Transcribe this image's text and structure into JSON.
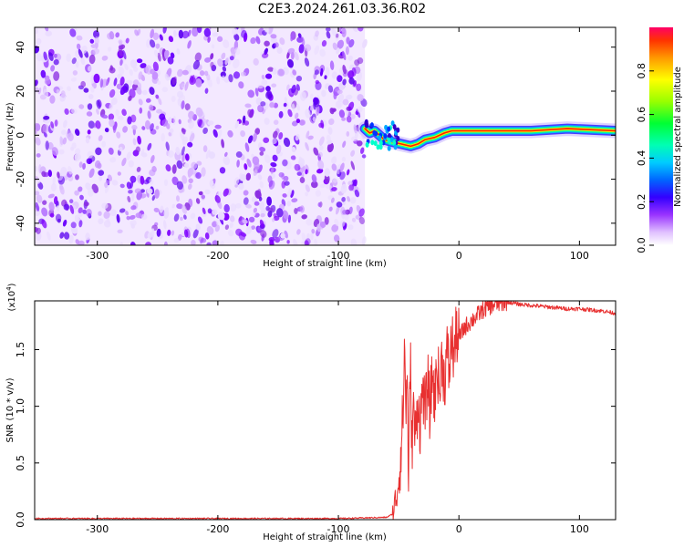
{
  "title": "C2E3.2024.261.03.36.R02",
  "chart_data": [
    {
      "type": "heatmap",
      "xlabel": "Height of straight line (km)",
      "ylabel": "Frequency (Hz)",
      "xlim": [
        -352,
        130
      ],
      "ylim": [
        -50,
        49
      ],
      "xticks": [
        -300,
        -200,
        -100,
        0,
        100
      ],
      "yticks": [
        -40,
        -20,
        0,
        20,
        40
      ],
      "colorbar": {
        "label": "Normalized spectral amplitude",
        "range": [
          0,
          1
        ],
        "ticks": [
          0.0,
          0.2,
          0.4,
          0.6,
          0.8
        ],
        "tick_labels": [
          "0.0",
          "0.2",
          "0.4",
          "0.6",
          "0.8"
        ],
        "colormap": [
          "#ffffff",
          "#cc66ff",
          "#7f00ff",
          "#0000ff",
          "#00c8ff",
          "#00ffb0",
          "#00ff00",
          "#ffff00",
          "#ff8000",
          "#ff0000"
        ]
      },
      "noise_region": {
        "x_from": -352,
        "x_to": -78
      },
      "signal_track": [
        {
          "x": -78,
          "y": 3
        },
        {
          "x": -74,
          "y": 1
        },
        {
          "x": -70,
          "y": 2
        },
        {
          "x": -66,
          "y": 0
        },
        {
          "x": -62,
          "y": -2
        },
        {
          "x": -56,
          "y": -3
        },
        {
          "x": -48,
          "y": -4
        },
        {
          "x": -40,
          "y": -5
        },
        {
          "x": -34,
          "y": -4
        },
        {
          "x": -28,
          "y": -2
        },
        {
          "x": -20,
          "y": -1
        },
        {
          "x": -12,
          "y": 1
        },
        {
          "x": -6,
          "y": 2
        },
        {
          "x": 0,
          "y": 2
        },
        {
          "x": 30,
          "y": 2
        },
        {
          "x": 60,
          "y": 2
        },
        {
          "x": 90,
          "y": 3
        },
        {
          "x": 130,
          "y": 2
        }
      ]
    },
    {
      "type": "line",
      "xlabel": "Height of straight line (km)",
      "ylabel": "SNR (10 * v/v)",
      "y_multiplier": "(x10",
      "y_multiplier_exp": "4",
      "y_multiplier_close": ")",
      "xlim": [
        -352,
        130
      ],
      "ylim": [
        0,
        1.93
      ],
      "xticks": [
        -300,
        -200,
        -100,
        0,
        100
      ],
      "yticks": [
        0.0,
        0.5,
        1.0,
        1.5
      ],
      "ytick_labels": [
        "0.0",
        "0.5",
        "1.0",
        "1.5"
      ],
      "series": [
        {
          "color": "#e83030",
          "x": [
            -352,
            -300,
            -200,
            -100,
            -60,
            -55,
            -52,
            -50,
            -48,
            -46,
            -45,
            -44,
            -43,
            -42,
            -41,
            -40,
            -39,
            -38,
            -36,
            -34,
            -32,
            -30,
            -28,
            -26,
            -24,
            -22,
            -20,
            -18,
            -16,
            -14,
            -12,
            -10,
            -8,
            -6,
            -4,
            -2,
            0,
            5,
            10,
            15,
            20,
            25,
            30,
            35,
            40,
            50,
            60,
            70,
            80,
            90,
            100,
            110,
            120,
            130
          ],
          "y": [
            0.01,
            0.01,
            0.01,
            0.01,
            0.02,
            0.05,
            0.2,
            0.35,
            0.6,
            1.05,
            1.6,
            0.9,
            1.4,
            0.3,
            0.95,
            1.35,
            0.6,
            1.0,
            0.7,
            1.1,
            0.8,
            1.2,
            0.9,
            1.25,
            0.95,
            1.3,
            1.05,
            1.4,
            1.1,
            1.45,
            1.2,
            1.5,
            1.3,
            1.6,
            1.45,
            1.65,
            1.6,
            1.7,
            1.75,
            1.8,
            1.85,
            1.88,
            1.9,
            1.91,
            1.92,
            1.9,
            1.89,
            1.88,
            1.87,
            1.86,
            1.86,
            1.85,
            1.84,
            1.82
          ]
        }
      ]
    }
  ]
}
